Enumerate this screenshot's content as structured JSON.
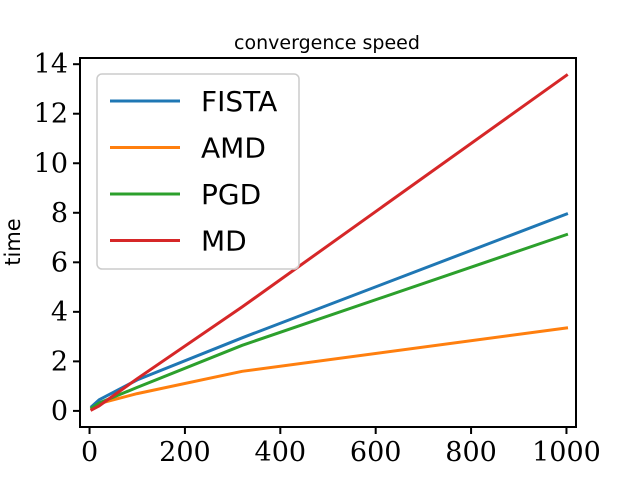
{
  "chart_data": {
    "type": "line",
    "title": "convergence speed",
    "xlabel": "",
    "ylabel": "time",
    "xlim": [
      -20,
      1020
    ],
    "ylim": [
      -0.65,
      14.25
    ],
    "xticks": [
      0,
      200,
      400,
      600,
      800,
      1000
    ],
    "yticks": [
      0,
      2,
      4,
      6,
      8,
      10,
      12,
      14
    ],
    "grid": false,
    "legend_position": "top-left",
    "series": [
      {
        "name": "FISTA",
        "color": "#1f77b4",
        "x": [
          5,
          20,
          100,
          320,
          1000
        ],
        "y": [
          0.18,
          0.45,
          1.25,
          2.95,
          7.95
        ]
      },
      {
        "name": "AMD",
        "color": "#ff7f0e",
        "x": [
          5,
          20,
          100,
          320,
          1000
        ],
        "y": [
          0.1,
          0.3,
          0.7,
          1.6,
          3.35
        ]
      },
      {
        "name": "PGD",
        "color": "#2ca02c",
        "x": [
          5,
          20,
          100,
          320,
          1000
        ],
        "y": [
          0.12,
          0.32,
          0.95,
          2.65,
          7.12
        ]
      },
      {
        "name": "MD",
        "color": "#d62728",
        "x": [
          5,
          20,
          100,
          320,
          1000
        ],
        "y": [
          0.05,
          0.2,
          1.3,
          4.2,
          13.55
        ]
      }
    ]
  }
}
